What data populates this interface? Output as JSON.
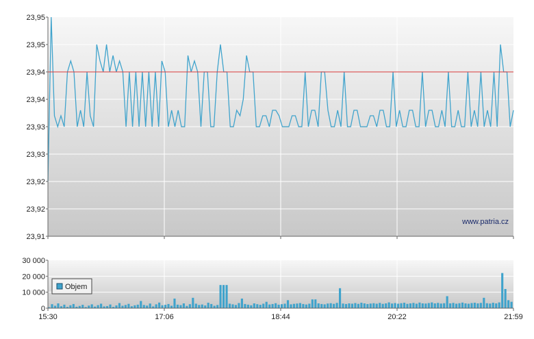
{
  "colors": {
    "price_line": "#3fa3cc",
    "reference_line": "#d93a3a",
    "volume_bar": "#3fa3cc",
    "grid": "#ffffff",
    "axis": "#666666",
    "plot_bg_top": "#f7f7f7",
    "plot_bg_bottom": "#c8c8c8"
  },
  "chart_data": [
    {
      "type": "line",
      "title": "",
      "xlabel": "",
      "ylabel": "",
      "watermark": "www.patria.cz",
      "x_tick_labels": [
        "15:30",
        "17:06",
        "18:44",
        "20:22",
        "21:59"
      ],
      "y_tick_labels": [
        "23,95",
        "23,95",
        "23,94",
        "23,94",
        "23,93",
        "23,93",
        "23,92",
        "23,92",
        "23,91"
      ],
      "ylim": [
        23.91,
        23.95
      ],
      "reference_value": 23.94,
      "grid": true,
      "series": [
        {
          "values": [
            23.92,
            23.95,
            23.932,
            23.93,
            23.932,
            23.93,
            23.94,
            23.942,
            23.94,
            23.93,
            23.933,
            23.93,
            23.94,
            23.932,
            23.93,
            23.945,
            23.942,
            23.94,
            23.945,
            23.94,
            23.943,
            23.94,
            23.942,
            23.94,
            23.93,
            23.94,
            23.93,
            23.94,
            23.93,
            23.94,
            23.93,
            23.94,
            23.93,
            23.94,
            23.93,
            23.942,
            23.94,
            23.93,
            23.933,
            23.93,
            23.933,
            23.93,
            23.93,
            23.943,
            23.94,
            23.942,
            23.94,
            23.93,
            23.94,
            23.94,
            23.93,
            23.93,
            23.94,
            23.945,
            23.94,
            23.94,
            23.93,
            23.93,
            23.933,
            23.932,
            23.935,
            23.943,
            23.94,
            23.94,
            23.93,
            23.93,
            23.932,
            23.932,
            23.93,
            23.933,
            23.933,
            23.932,
            23.93,
            23.93,
            23.93,
            23.932,
            23.932,
            23.93,
            23.93,
            23.94,
            23.93,
            23.933,
            23.933,
            23.93,
            23.94,
            23.94,
            23.933,
            23.93,
            23.93,
            23.933,
            23.93,
            23.94,
            23.93,
            23.93,
            23.933,
            23.933,
            23.93,
            23.93,
            23.93,
            23.932,
            23.932,
            23.93,
            23.933,
            23.933,
            23.93,
            23.93,
            23.94,
            23.93,
            23.933,
            23.93,
            23.93,
            23.933,
            23.933,
            23.93,
            23.93,
            23.94,
            23.93,
            23.933,
            23.933,
            23.93,
            23.93,
            23.933,
            23.93,
            23.94,
            23.93,
            23.93,
            23.933,
            23.93,
            23.93,
            23.94,
            23.93,
            23.933,
            23.93,
            23.94,
            23.93,
            23.933,
            23.93,
            23.94,
            23.93,
            23.945,
            23.94,
            23.94,
            23.93,
            23.933
          ]
        }
      ]
    },
    {
      "type": "bar",
      "title": "",
      "xlabel": "",
      "ylabel": "",
      "legend": {
        "label": "Objem",
        "position": "top-left"
      },
      "y_tick_labels": [
        "30 000",
        "20 000",
        "10 000",
        "0"
      ],
      "ylim": [
        0,
        30000
      ],
      "grid": true,
      "series": [
        {
          "name": "Objem",
          "values": [
            600,
            2500,
            1500,
            3000,
            1200,
            2200,
            800,
            1800,
            2600,
            900,
            1400,
            2100,
            700,
            1600,
            2400,
            1000,
            1900,
            2800,
            1100,
            1300,
            2300,
            800,
            1700,
            3200,
            1500,
            2000,
            2700,
            1200,
            1800,
            2200,
            4500,
            2000,
            1600,
            2900,
            1100,
            2400,
            3500,
            1800,
            2100,
            2600,
            1500,
            6000,
            2200,
            1900,
            3000,
            1400,
            2500,
            6500,
            2800,
            2000,
            2300,
            1700,
            3400,
            2600,
            1500,
            2000,
            14500,
            14500,
            14500,
            2800,
            2400,
            2000,
            3200,
            6000,
            2600,
            2200,
            1800,
            3000,
            2500,
            2100,
            2800,
            4000,
            2300,
            2600,
            3100,
            2200,
            2500,
            2800,
            5000,
            2400,
            2700,
            2900,
            3200,
            2600,
            2300,
            2800,
            5500,
            5500,
            3000,
            2600,
            2400,
            2900,
            3100,
            2700,
            3300,
            12500,
            2900,
            2600,
            3000,
            2800,
            3200,
            2700,
            3400,
            3000,
            2600,
            2900,
            3100,
            2800,
            3300,
            2700,
            3000,
            3600,
            2900,
            3200,
            2800,
            3100,
            3400,
            2700,
            3000,
            3300,
            2800,
            3500,
            3000,
            2900,
            3200,
            3600,
            3000,
            3300,
            2900,
            3100,
            7500,
            3000,
            3300,
            2800,
            3100,
            3500,
            3000,
            2800,
            3200,
            3400,
            3000,
            3300,
            6500,
            3100,
            2900,
            3400,
            3000,
            3600,
            22000,
            12000,
            5000,
            4000
          ]
        }
      ]
    }
  ]
}
